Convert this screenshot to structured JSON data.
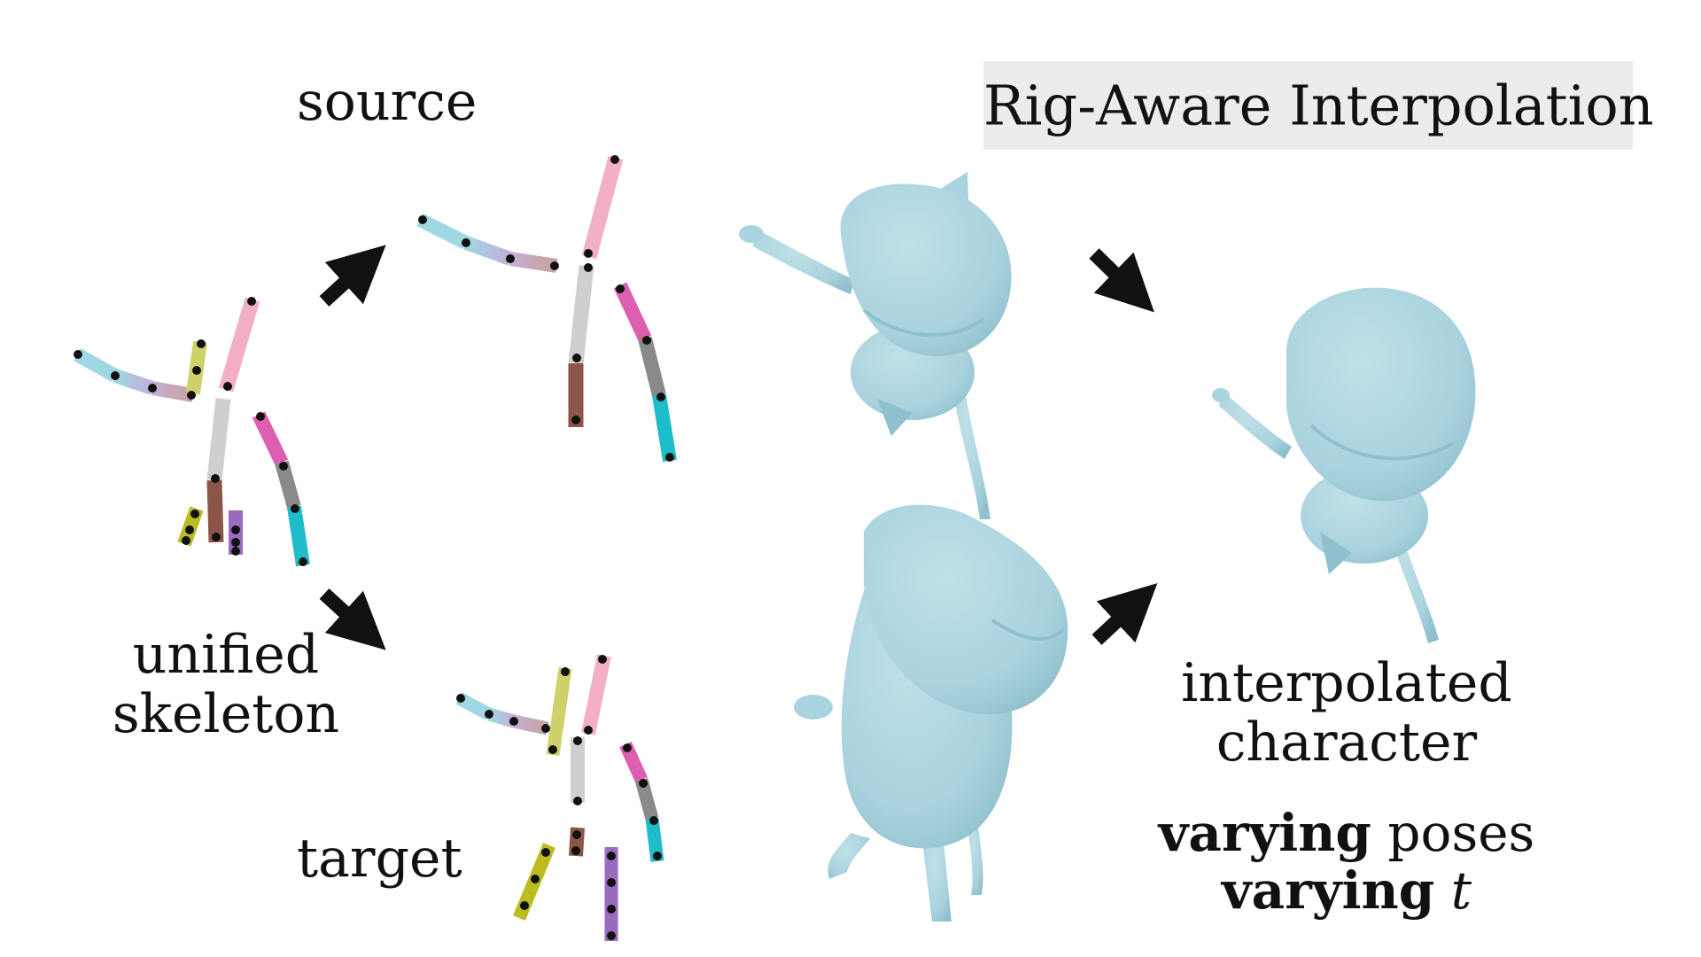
{
  "title": "Rig-Aware Interpolation",
  "labels": {
    "source": "source",
    "target": "target",
    "unified_line1": "unified",
    "unified_line2": "skeleton",
    "interp_line1": "interpolated",
    "interp_line2": "character"
  },
  "notes": {
    "line1_bold": "varying",
    "line1_rest": " poses",
    "line2_bold": "varying",
    "line2_var": "t"
  },
  "colors": {
    "mesh": "#a9d3de",
    "mesh_shade": "#8fc0cd",
    "arrow": "#111111",
    "title_bg": "#ececec",
    "bone_pink": "#f3afc8",
    "bone_gray": "#cfcfcf",
    "bone_brown": "#8b5548",
    "bone_magenta": "#de5fb1",
    "bone_darkgray": "#8a8a8a",
    "bone_cyan": "#1fbccb",
    "bone_lightblue": "#9fd8e3",
    "bone_lavender": "#c5afd8",
    "bone_tan": "#c9a29a",
    "bone_yellow": "#cfd16a",
    "bone_olive": "#bcbc22",
    "bone_purple": "#9a6bbf"
  },
  "icons": [
    "arrow-icon",
    "mesh-character-icon",
    "skeleton-icon"
  ]
}
